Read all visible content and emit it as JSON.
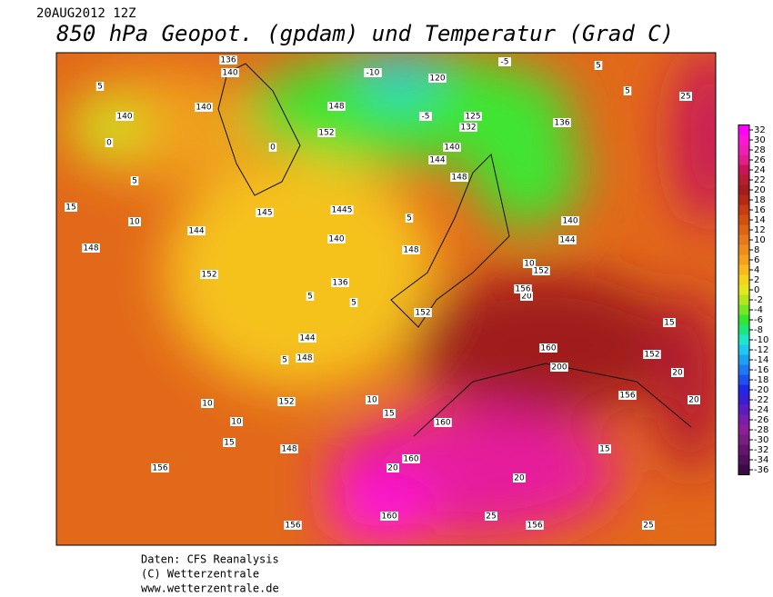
{
  "header": {
    "date": "20AUG2012 12Z",
    "title": "850 hPa Geopot. (gpdam) und  Temperatur (Grad C)"
  },
  "colorbar": {
    "ticks": [
      32,
      30,
      28,
      26,
      24,
      22,
      20,
      18,
      16,
      14,
      12,
      10,
      8,
      6,
      4,
      2,
      0,
      -2,
      -4,
      -6,
      -8,
      -10,
      -12,
      -14,
      -16,
      -18,
      -20,
      -22,
      -24,
      -26,
      -28,
      -30,
      -32,
      -34,
      -36
    ],
    "colors": [
      "#ff00ff",
      "#ff14d8",
      "#f01eb4",
      "#e01e8c",
      "#c8145a",
      "#b41e32",
      "#a01e1e",
      "#b42814",
      "#c83c0f",
      "#d2500f",
      "#dc6414",
      "#e6781e",
      "#f08c1e",
      "#f5a01e",
      "#faba1e",
      "#f5d21e",
      "#e6e61e",
      "#b4e61e",
      "#78e628",
      "#32e632",
      "#1ee678",
      "#1ee6c8",
      "#1ec8f0",
      "#1ea0f0",
      "#1e78f0",
      "#1e50f0",
      "#1e28e6",
      "#3c1ed2",
      "#5a1ebe",
      "#781eaa",
      "#8c1e96",
      "#781e82",
      "#64146e",
      "#500f5a",
      "#3c0a46"
    ]
  },
  "map": {
    "labels": [
      "136",
      "140",
      "5",
      "140",
      "140",
      "0",
      "5",
      "-10",
      "120",
      "-5",
      "5",
      "5",
      "25",
      "148",
      "-5",
      "125",
      "132",
      "136",
      "140",
      "144",
      "148",
      "152",
      "0",
      "15",
      "10",
      "148",
      "144",
      "152",
      "145",
      "1445",
      "140",
      "5",
      "148",
      "136",
      "5",
      "152",
      "5",
      "144",
      "148",
      "5",
      "10",
      "152",
      "10",
      "15",
      "148",
      "156",
      "140",
      "144",
      "10",
      "152",
      "20",
      "156",
      "160",
      "200",
      "152",
      "20",
      "156",
      "160",
      "160",
      "20",
      "156",
      "25",
      "25",
      "156",
      "160",
      "20",
      "15",
      "10",
      "15",
      "20",
      "15"
    ]
  },
  "footer": {
    "lines": [
      "Daten: CFS Reanalysis",
      "(C) Wetterzentrale",
      "www.wetterzentrale.de"
    ]
  }
}
